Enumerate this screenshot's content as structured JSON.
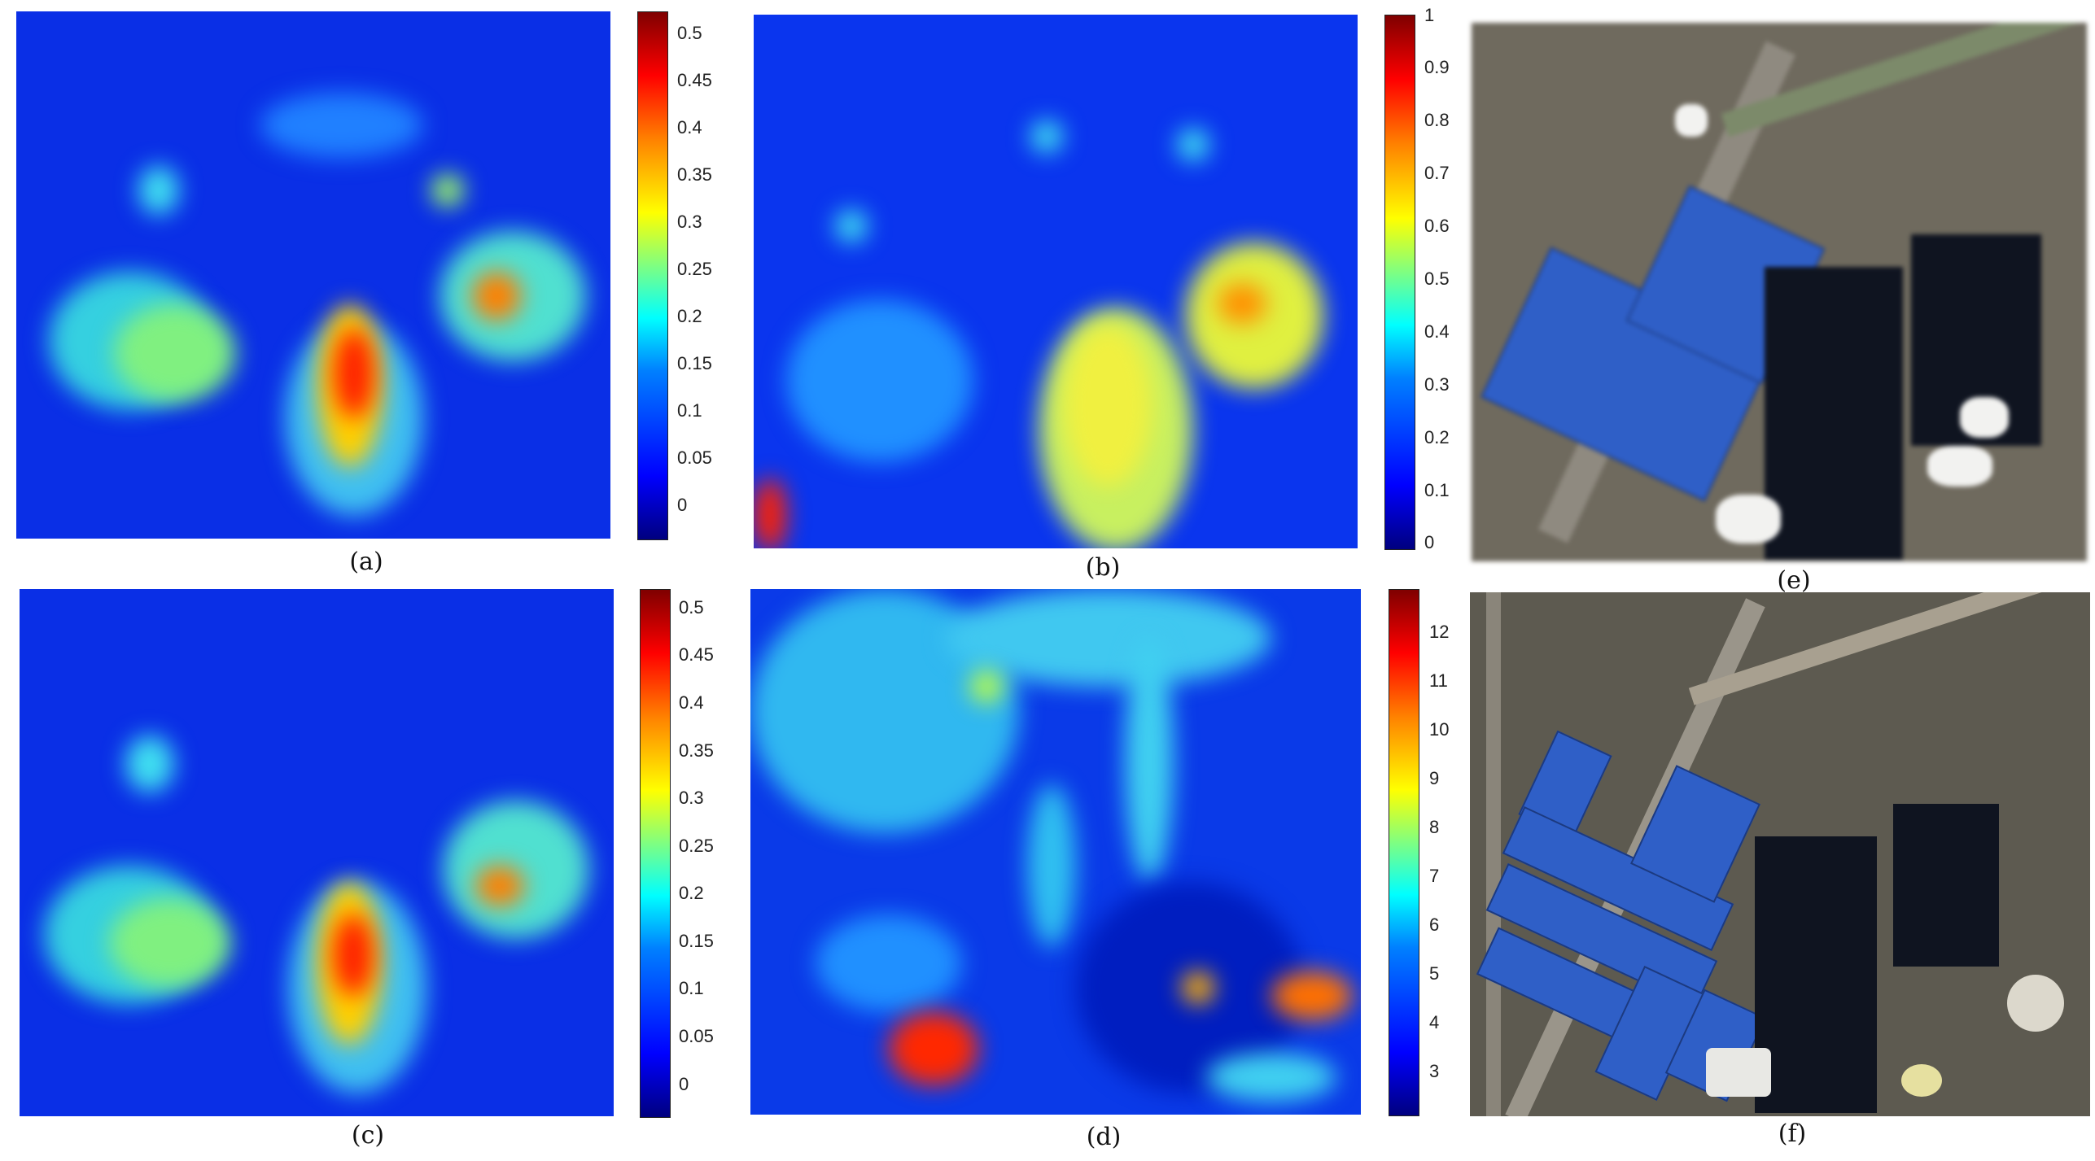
{
  "panels": {
    "a": {
      "caption": "(a)",
      "colorbar": {
        "ticks": [
          "0.5",
          "0.45",
          "0.4",
          "0.35",
          "0.3",
          "0.25",
          "0.2",
          "0.15",
          "0.1",
          "0.05",
          "0"
        ]
      }
    },
    "b": {
      "caption": "(b)",
      "colorbar": {
        "ticks": [
          "1",
          "0.9",
          "0.8",
          "0.7",
          "0.6",
          "0.5",
          "0.4",
          "0.3",
          "0.2",
          "0.1",
          "0"
        ]
      }
    },
    "c": {
      "caption": "(c)",
      "colorbar": {
        "ticks": [
          "0.5",
          "0.45",
          "0.4",
          "0.35",
          "0.3",
          "0.25",
          "0.2",
          "0.15",
          "0.1",
          "0.05",
          "0"
        ]
      }
    },
    "d": {
      "caption": "(d)",
      "colorbar": {
        "ticks": [
          "12",
          "11",
          "10",
          "9",
          "8",
          "7",
          "6",
          "5",
          "4",
          "3"
        ]
      }
    },
    "e": {
      "caption": "(e)"
    },
    "f": {
      "caption": "(f)"
    }
  },
  "colors": {
    "jet_low": "#00007f",
    "jet_mid": "#ffff00",
    "jet_high": "#7f0000",
    "background_blue": "#0a2fe6"
  }
}
